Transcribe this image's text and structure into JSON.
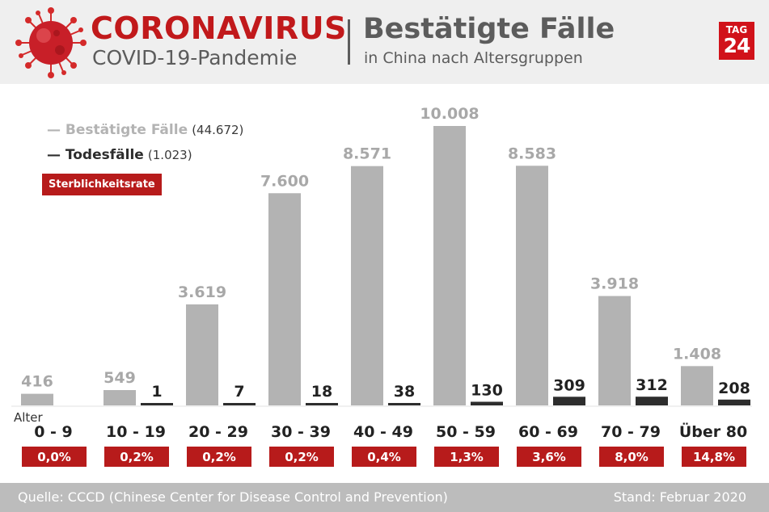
{
  "header": {
    "brand_title": "CORONAVIRUS",
    "brand_subtitle": "COVID-19-Pandemie",
    "title": "Bestätigte Fälle",
    "subtitle": "in China nach Altersgruppen",
    "logo_line1": "TAG",
    "logo_line2": "24"
  },
  "legend": {
    "confirmed_label": "— Bestätigte Fälle",
    "confirmed_count": "(44.672)",
    "deaths_label": "— Todesfälle",
    "deaths_count": "(1.023)",
    "rate_label": "Sterblichkeitsrate"
  },
  "colors": {
    "confirmed": "#b3b3b3",
    "deaths": "#2d2d2d",
    "rate_badge": "#b71b1b",
    "brand_red": "#c1191b",
    "header_gray": "#5c5c5c"
  },
  "chart_data": {
    "type": "bar",
    "xlabel": "Alter",
    "categories": [
      "0 - 9",
      "10 - 19",
      "20 - 29",
      "30 - 39",
      "40 - 49",
      "50 - 59",
      "60 - 69",
      "70 - 79",
      "Über 80"
    ],
    "series": [
      {
        "name": "Bestätigte Fälle",
        "values": [
          416,
          549,
          3619,
          7600,
          8571,
          10008,
          8583,
          3918,
          1408
        ],
        "labels": [
          "416",
          "549",
          "3.619",
          "7.600",
          "8.571",
          "10.008",
          "8.583",
          "3.918",
          "1.408"
        ]
      },
      {
        "name": "Todesfälle",
        "values": [
          0,
          1,
          7,
          18,
          38,
          130,
          309,
          312,
          208
        ],
        "labels": [
          "",
          "1",
          "7",
          "18",
          "38",
          "130",
          "309",
          "312",
          "208"
        ]
      }
    ],
    "mortality_rate": [
      "0,0%",
      "0,2%",
      "0,2%",
      "0,2%",
      "0,4%",
      "1,3%",
      "3,6%",
      "8,0%",
      "14,8%"
    ],
    "ylim": [
      0,
      10008
    ]
  },
  "footer": {
    "source": "Quelle: CCCD (Chinese Center for Disease Control and Prevention)",
    "date": "Stand: Februar 2020"
  }
}
